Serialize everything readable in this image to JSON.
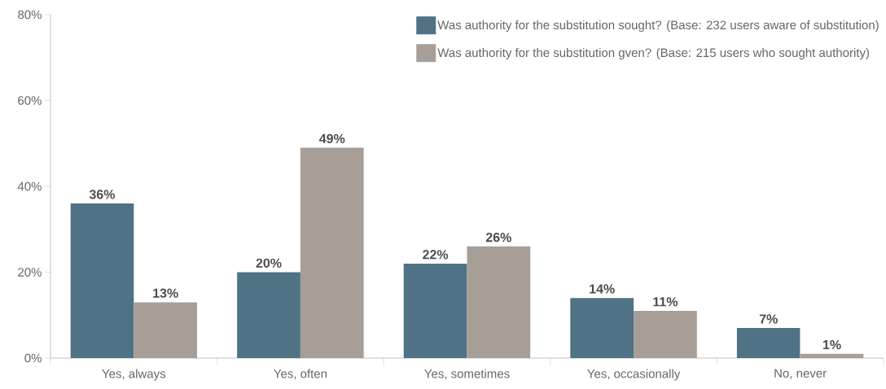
{
  "chart_data": {
    "type": "bar",
    "categories": [
      "Yes, always",
      "Yes, often",
      "Yes, sometimes",
      "Yes, occasionally",
      "No, never"
    ],
    "series": [
      {
        "name": "Was authority for the substitution sought? (Base: 232 users aware of substitution)",
        "color": "#4f7285",
        "values": [
          36,
          20,
          22,
          14,
          7
        ],
        "value_labels": [
          "36%",
          "20%",
          "22%",
          "14%",
          "7%"
        ]
      },
      {
        "name": "Was authority for the substitution gven? (Base: 215 users who sought authority)",
        "color": "#a79e98",
        "values": [
          13,
          49,
          26,
          11,
          1
        ],
        "value_labels": [
          "13%",
          "49%",
          "26%",
          "11%",
          "1%"
        ]
      }
    ],
    "ylim": [
      0,
      80
    ],
    "yticks": [
      {
        "value": 0,
        "label": "0%"
      },
      {
        "value": 20,
        "label": "20%"
      },
      {
        "value": 40,
        "label": "40%"
      },
      {
        "value": 60,
        "label": "60%"
      },
      {
        "value": 80,
        "label": "80%"
      }
    ],
    "grid": false,
    "legend": "top right"
  }
}
